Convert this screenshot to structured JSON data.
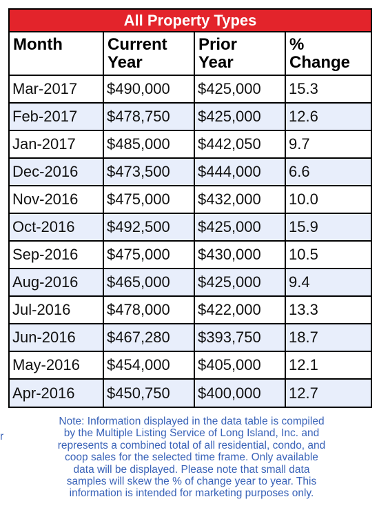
{
  "table": {
    "title": "All Property Types",
    "headers": {
      "month": "Month",
      "current_line1": "Current",
      "current_line2": "Year",
      "prior_line1": "Prior",
      "prior_line2": "Year",
      "pct_line1": "%",
      "pct_line2": "Change"
    },
    "rows": [
      {
        "month": "Mar-2017",
        "current": "$490,000",
        "prior": "$425,000",
        "change": "15.3"
      },
      {
        "month": "Feb-2017",
        "current": "$478,750",
        "prior": "$425,000",
        "change": "12.6"
      },
      {
        "month": "Jan-2017",
        "current": "$485,000",
        "prior": "$442,050",
        "change": "9.7"
      },
      {
        "month": "Dec-2016",
        "current": "$473,500",
        "prior": "$444,000",
        "change": "6.6"
      },
      {
        "month": "Nov-2016",
        "current": "$475,000",
        "prior": "$432,000",
        "change": "10.0"
      },
      {
        "month": "Oct-2016",
        "current": "$492,500",
        "prior": "$425,000",
        "change": "15.9"
      },
      {
        "month": "Sep-2016",
        "current": "$475,000",
        "prior": "$430,000",
        "change": "10.5"
      },
      {
        "month": "Aug-2016",
        "current": "$465,000",
        "prior": "$425,000",
        "change": "9.4"
      },
      {
        "month": "Jul-2016",
        "current": "$478,000",
        "prior": "$422,000",
        "change": "13.3"
      },
      {
        "month": "Jun-2016",
        "current": "$467,280",
        "prior": "$393,750",
        "change": "18.7"
      },
      {
        "month": "May-2016",
        "current": "$454,000",
        "prior": "$405,000",
        "change": "12.1"
      },
      {
        "month": "Apr-2016",
        "current": "$450,750",
        "prior": "$400,000",
        "change": "12.7"
      }
    ]
  },
  "note": {
    "stray_char": "r",
    "lines": [
      "Note: Information displayed in the data table is compiled",
      "by the Multiple  Listing Service of Long Island, Inc. and",
      "represents a combined total of all residential, condo, and",
      "coop sales for the selected time frame. Only available",
      "data will be displayed. Please note that small data",
      "samples will skew the % of change year to year. This",
      "information is intended for marketing purposes only."
    ]
  },
  "colors": {
    "title_bg": "#e3242b",
    "alt_row_bg": "#e8eefb",
    "note_text": "#3a63b8"
  }
}
